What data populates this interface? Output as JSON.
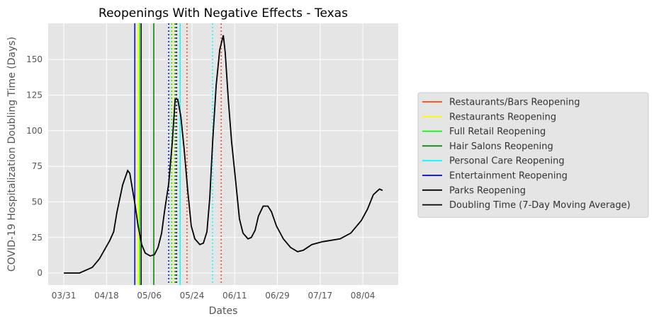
{
  "chart_data": {
    "type": "line",
    "title": "Reopenings With Negative Effects - Texas",
    "x_label": "Dates",
    "y_label": "COVID-19 Hospitalization Doubling Time (Days)",
    "x": [
      0,
      6.6,
      12,
      15,
      19.4,
      21,
      22.4,
      24.8,
      26.9,
      27.8,
      30,
      31.3,
      32.8,
      34.3,
      36.4,
      38.2,
      39.7,
      41.2,
      42.4,
      44.2,
      45.7,
      46.9,
      48,
      49.3,
      50.7,
      52.2,
      53.7,
      55.2,
      57.3,
      58.8,
      60.3,
      61.5,
      62.7,
      64.2,
      65.7,
      67.2,
      68,
      69.3,
      70.7,
      72.5,
      74,
      75.5,
      77.6,
      79,
      80.6,
      82,
      84,
      86,
      87.5,
      89.6,
      92.5,
      95.5,
      98.5,
      100.9,
      104.5,
      109,
      116.4,
      120.9,
      125.4,
      128,
      130.4,
      133,
      134.3
    ],
    "series": [
      {
        "name": "Doubling Time (7-Day Moving Average)",
        "color": "#000000",
        "values": [
          0,
          0,
          4,
          10,
          23,
          29,
          43,
          62,
          72,
          70,
          48,
          33,
          20,
          14,
          12,
          13,
          18,
          28,
          43,
          63,
          92,
          122,
          122,
          110,
          87,
          58,
          33,
          24,
          20,
          21,
          29,
          53,
          92,
          132,
          157,
          167,
          155,
          122,
          92,
          63,
          38,
          28,
          24,
          25,
          30,
          40,
          47,
          47,
          43,
          33,
          24,
          18,
          15,
          16,
          20,
          22,
          24,
          28,
          37,
          45,
          55,
          59,
          58
        ]
      }
    ],
    "reopenings": [
      {
        "name": "Restaurants/Bars Reopening",
        "color": "#ff4500",
        "x": [
          51.9,
          66.3
        ],
        "styles": [
          "dotted",
          "dotted"
        ]
      },
      {
        "name": "Restaurants Reopening",
        "color": "#ffff00",
        "x": [
          31.3,
          46
        ],
        "styles": [
          "solid",
          "dotted"
        ]
      },
      {
        "name": "Full Retail Reopening",
        "color": "#00ff00",
        "x": [
          32,
          45.4
        ],
        "styles": [
          "solid",
          "dotted"
        ]
      },
      {
        "name": "Hair Salons Reopening",
        "color": "#008000",
        "x": [
          37.9,
          46.9
        ],
        "styles": [
          "solid",
          "dotted"
        ]
      },
      {
        "name": "Personal Care Reopening",
        "color": "#00ffff",
        "x": [
          49,
          62.7
        ],
        "styles": [
          "solid",
          "dotted"
        ]
      },
      {
        "name": "Entertainment Reopening",
        "color": "#0000ff",
        "x": [
          29.9,
          44.2
        ],
        "styles": [
          "solid",
          "dotted"
        ]
      },
      {
        "name": "Parks Reopening",
        "color": "#000000",
        "x": [
          32.6,
          47.5
        ],
        "styles": [
          "solid",
          "dotted"
        ]
      }
    ],
    "xlim": [
      -6.6,
      140.9
    ],
    "ylim": [
      -8.4,
      175.4
    ],
    "xticks": [
      {
        "value": 0,
        "label": "03/31"
      },
      {
        "value": 18,
        "label": "04/18"
      },
      {
        "value": 36,
        "label": "05/06"
      },
      {
        "value": 54,
        "label": "05/24"
      },
      {
        "value": 72,
        "label": "06/11"
      },
      {
        "value": 90,
        "label": "06/29"
      },
      {
        "value": 108,
        "label": "07/17"
      },
      {
        "value": 126,
        "label": "08/04"
      }
    ],
    "yticks": [
      0,
      25,
      50,
      75,
      100,
      125,
      150
    ],
    "grid": true,
    "legend": "right"
  }
}
